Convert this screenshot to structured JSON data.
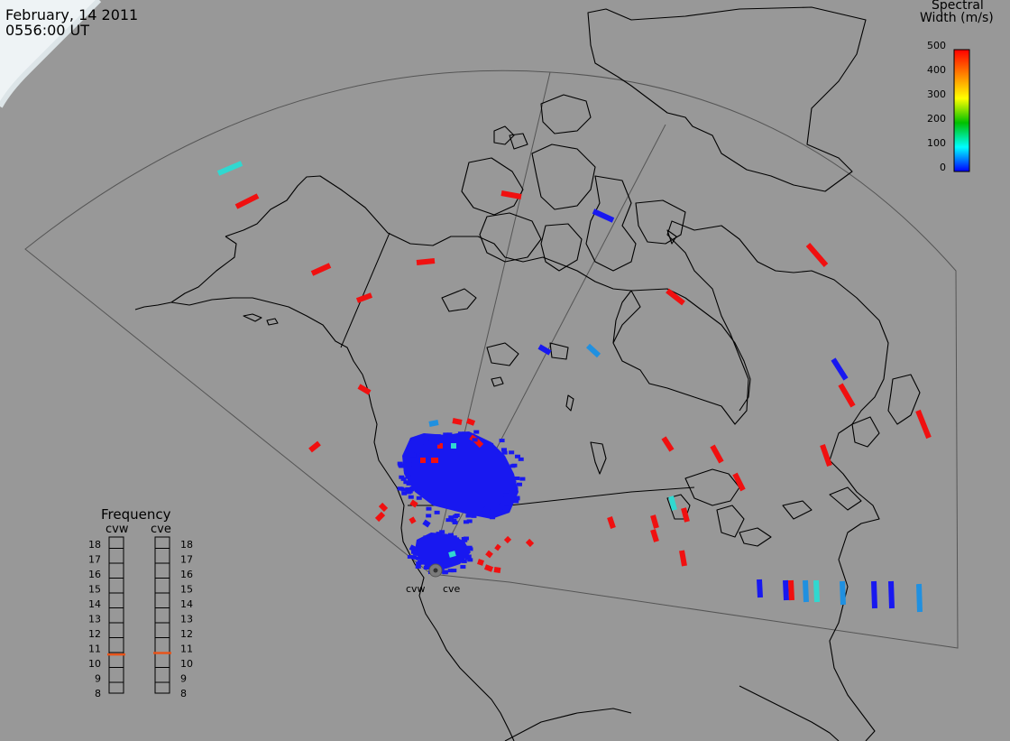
{
  "title": {
    "date": "February, 14 2011",
    "time": "0556:00 UT"
  },
  "colorbar": {
    "title_line1": "Spectral",
    "title_line2": "Width (m/s)",
    "ticks": [
      "500",
      "400",
      "300",
      "200",
      "100",
      "0"
    ],
    "range": [
      0,
      500
    ]
  },
  "frequency_panel": {
    "title": "Frequency",
    "radars": [
      "cvw",
      "cve"
    ],
    "scale": [
      "18",
      "17",
      "16",
      "15",
      "14",
      "13",
      "12",
      "11",
      "10",
      "9",
      "8"
    ],
    "unit_range": [
      8,
      18
    ],
    "selected": {
      "cvw": 10.6,
      "cve": 10.7
    },
    "marker_color": "#e8541a"
  },
  "sites": [
    {
      "name": "cvw"
    },
    {
      "name": "cve"
    }
  ],
  "colors": {
    "background": "#989898",
    "coastline": "#000000",
    "field_of_view": "#555555",
    "daylight": "#f2f5f6",
    "low_width": "#1818f0",
    "mid_width": "#30d8d0",
    "high_width": "#f01010"
  }
}
